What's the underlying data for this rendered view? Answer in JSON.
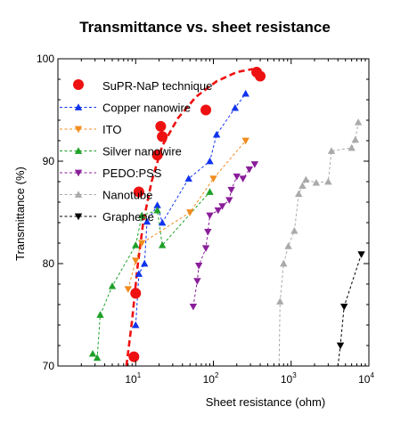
{
  "chart_data": {
    "type": "scatter",
    "title": "Transmittance vs. sheet resistance",
    "xlabel": "Sheet resistance (ohm)",
    "ylabel": "Transmittance (%)",
    "xscale": "log",
    "xlim": [
      1,
      10000
    ],
    "ylim": [
      70,
      100
    ],
    "grid": false,
    "legend_position": "top-left",
    "x_ticks": [
      {
        "base": "10",
        "exp": "1",
        "value": 10
      },
      {
        "base": "10",
        "exp": "2",
        "value": 100
      },
      {
        "base": "10",
        "exp": "3",
        "value": 1000
      },
      {
        "base": "10",
        "exp": "4",
        "value": 10000
      }
    ],
    "y_ticks": [
      {
        "label": "70",
        "value": 70
      },
      {
        "label": "80",
        "value": 80
      },
      {
        "label": "90",
        "value": 90
      },
      {
        "label": "100",
        "value": 100
      }
    ],
    "series": [
      {
        "name": "SuPR-NaP technique",
        "color": "#ee1111",
        "marker": "circle",
        "points": [
          [
            9.5,
            70.9
          ],
          [
            10,
            77.1
          ],
          [
            11,
            87
          ],
          [
            19,
            90.6
          ],
          [
            21,
            93.4
          ],
          [
            22,
            92.4
          ],
          [
            80,
            95
          ],
          [
            360,
            98.7
          ],
          [
            400,
            98.3
          ]
        ],
        "fit": [
          [
            7.6,
            70
          ],
          [
            9,
            74.5
          ],
          [
            10.5,
            79.5
          ],
          [
            12.5,
            84
          ],
          [
            16,
            88
          ],
          [
            22,
            91.5
          ],
          [
            35,
            94.2
          ],
          [
            60,
            96.3
          ],
          [
            110,
            97.8
          ],
          [
            200,
            98.7
          ],
          [
            320,
            99
          ]
        ]
      },
      {
        "name": "Copper nanowire",
        "color": "#1133ee",
        "marker": "triangle-up",
        "points": [
          [
            10,
            74
          ],
          [
            11,
            79
          ],
          [
            13,
            80
          ],
          [
            14,
            84.1
          ],
          [
            19,
            85.7
          ],
          [
            22,
            84
          ],
          [
            48,
            88.3
          ],
          [
            90,
            90
          ],
          [
            110,
            92.6
          ],
          [
            190,
            95.2
          ],
          [
            260,
            96.6
          ]
        ]
      },
      {
        "name": "ITO",
        "color": "#f08c1e",
        "marker": "triangle-down",
        "points": [
          [
            8,
            77.5
          ],
          [
            10,
            80.3
          ],
          [
            12,
            82
          ],
          [
            50,
            85
          ],
          [
            100,
            88.3
          ],
          [
            260,
            92
          ]
        ]
      },
      {
        "name": "Silver nanowire",
        "color": "#1ea028",
        "marker": "triangle-up",
        "points": [
          [
            2.8,
            71.2
          ],
          [
            3.2,
            70.8
          ],
          [
            3.5,
            75
          ],
          [
            5,
            77.8
          ],
          [
            10,
            81.8
          ],
          [
            12,
            84.7
          ],
          [
            19,
            85.2
          ],
          [
            22,
            81.8
          ],
          [
            90,
            87
          ]
        ]
      },
      {
        "name": "PEDO:PSS",
        "color": "#8a1e9a",
        "marker": "triangle-down",
        "points": [
          [
            55,
            75.8
          ],
          [
            62,
            78.3
          ],
          [
            65,
            79.8
          ],
          [
            80,
            81.5
          ],
          [
            85,
            83.1
          ],
          [
            90,
            84.7
          ],
          [
            115,
            85.2
          ],
          [
            130,
            85.6
          ],
          [
            160,
            86.2
          ],
          [
            170,
            87.2
          ],
          [
            200,
            88.5
          ],
          [
            240,
            88.3
          ],
          [
            290,
            89.2
          ],
          [
            340,
            89.7
          ]
        ]
      },
      {
        "name": "Nanotube",
        "color": "#aaaaaa",
        "marker": "triangle-up",
        "points": [
          [
            720,
            76.3
          ],
          [
            800,
            80
          ],
          [
            920,
            81.7
          ],
          [
            1100,
            83.2
          ],
          [
            1250,
            86.8
          ],
          [
            1400,
            87.6
          ],
          [
            1550,
            88.2
          ],
          [
            2100,
            87.9
          ],
          [
            3000,
            88
          ],
          [
            3300,
            91
          ],
          [
            6000,
            91.3
          ],
          [
            6700,
            92.1
          ],
          [
            7300,
            93.8
          ]
        ]
      },
      {
        "name": "Graphene",
        "color": "#000000",
        "marker": "triangle-down",
        "points": [
          [
            4300,
            72
          ],
          [
            4800,
            75.8
          ],
          [
            8000,
            80.9
          ]
        ]
      }
    ],
    "series_lines_extend": {
      "Nanotube": [
        [
          700,
          70
        ],
        [
          720,
          76.3
        ]
      ],
      "Graphene": [
        [
          4000,
          70
        ],
        [
          4300,
          72
        ]
      ]
    }
  }
}
